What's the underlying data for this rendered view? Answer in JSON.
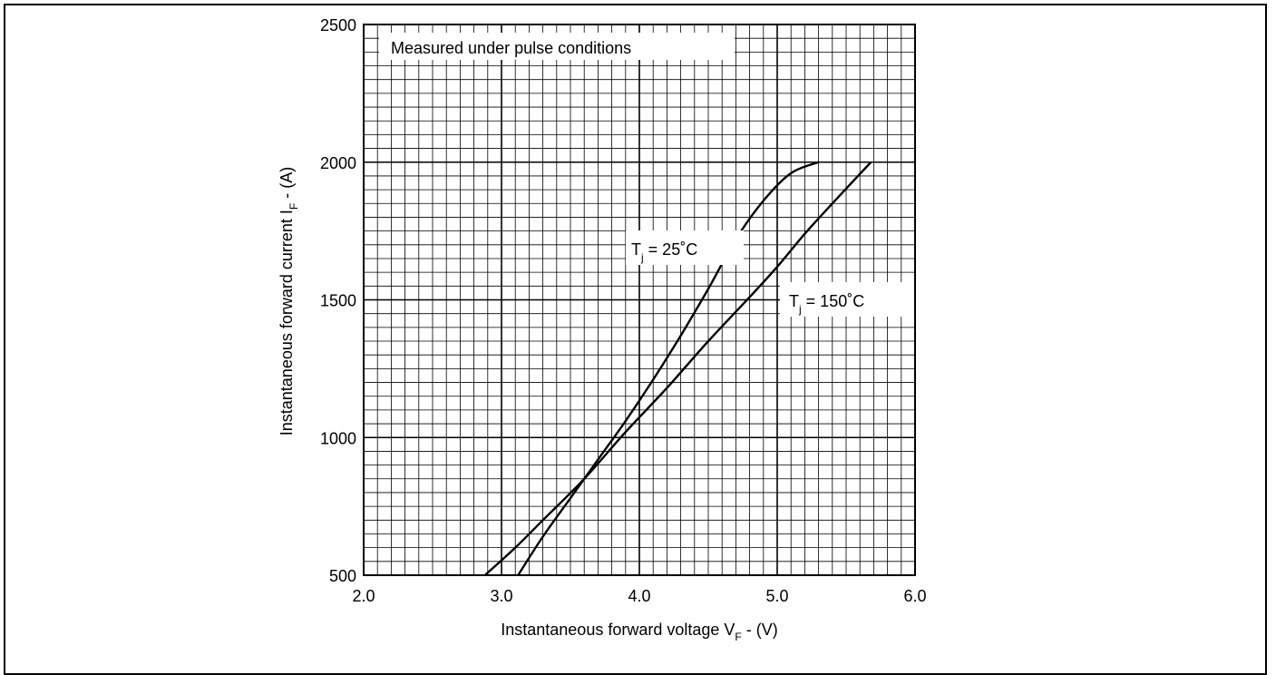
{
  "chart_data": {
    "type": "line",
    "title": "",
    "annotation": "Measured under pulse conditions",
    "xlabel": {
      "main": "Instantaneous forward voltage V",
      "sub": "F",
      "tail": " - (V)"
    },
    "ylabel": {
      "main": "Instantaneous forward current I",
      "sub": "F",
      "tail": " - (A)"
    },
    "xlim": [
      2.0,
      6.0
    ],
    "ylim": [
      500,
      2500
    ],
    "xticks": [
      "2.0",
      "3.0",
      "4.0",
      "5.0",
      "6.0"
    ],
    "yticks": [
      "500",
      "1000",
      "1500",
      "2000",
      "2500"
    ],
    "grid": true,
    "series": [
      {
        "label": {
          "main": "T",
          "sub": "j",
          "tail": " = 25˚C"
        },
        "points": [
          [
            3.12,
            500
          ],
          [
            3.3,
            640
          ],
          [
            3.5,
            780
          ],
          [
            3.7,
            920
          ],
          [
            3.9,
            1060
          ],
          [
            4.1,
            1210
          ],
          [
            4.3,
            1370
          ],
          [
            4.5,
            1540
          ],
          [
            4.7,
            1720
          ],
          [
            4.9,
            1860
          ],
          [
            5.1,
            1960
          ],
          [
            5.3,
            2000
          ]
        ]
      },
      {
        "label": {
          "main": "T",
          "sub": "j",
          "tail": " = 150˚C"
        },
        "points": [
          [
            2.88,
            500
          ],
          [
            3.1,
            600
          ],
          [
            3.3,
            700
          ],
          [
            3.6,
            850
          ],
          [
            3.9,
            1020
          ],
          [
            4.2,
            1180
          ],
          [
            4.5,
            1350
          ],
          [
            4.8,
            1510
          ],
          [
            5.0,
            1620
          ],
          [
            5.2,
            1740
          ],
          [
            5.4,
            1850
          ],
          [
            5.68,
            2000
          ]
        ]
      }
    ]
  }
}
